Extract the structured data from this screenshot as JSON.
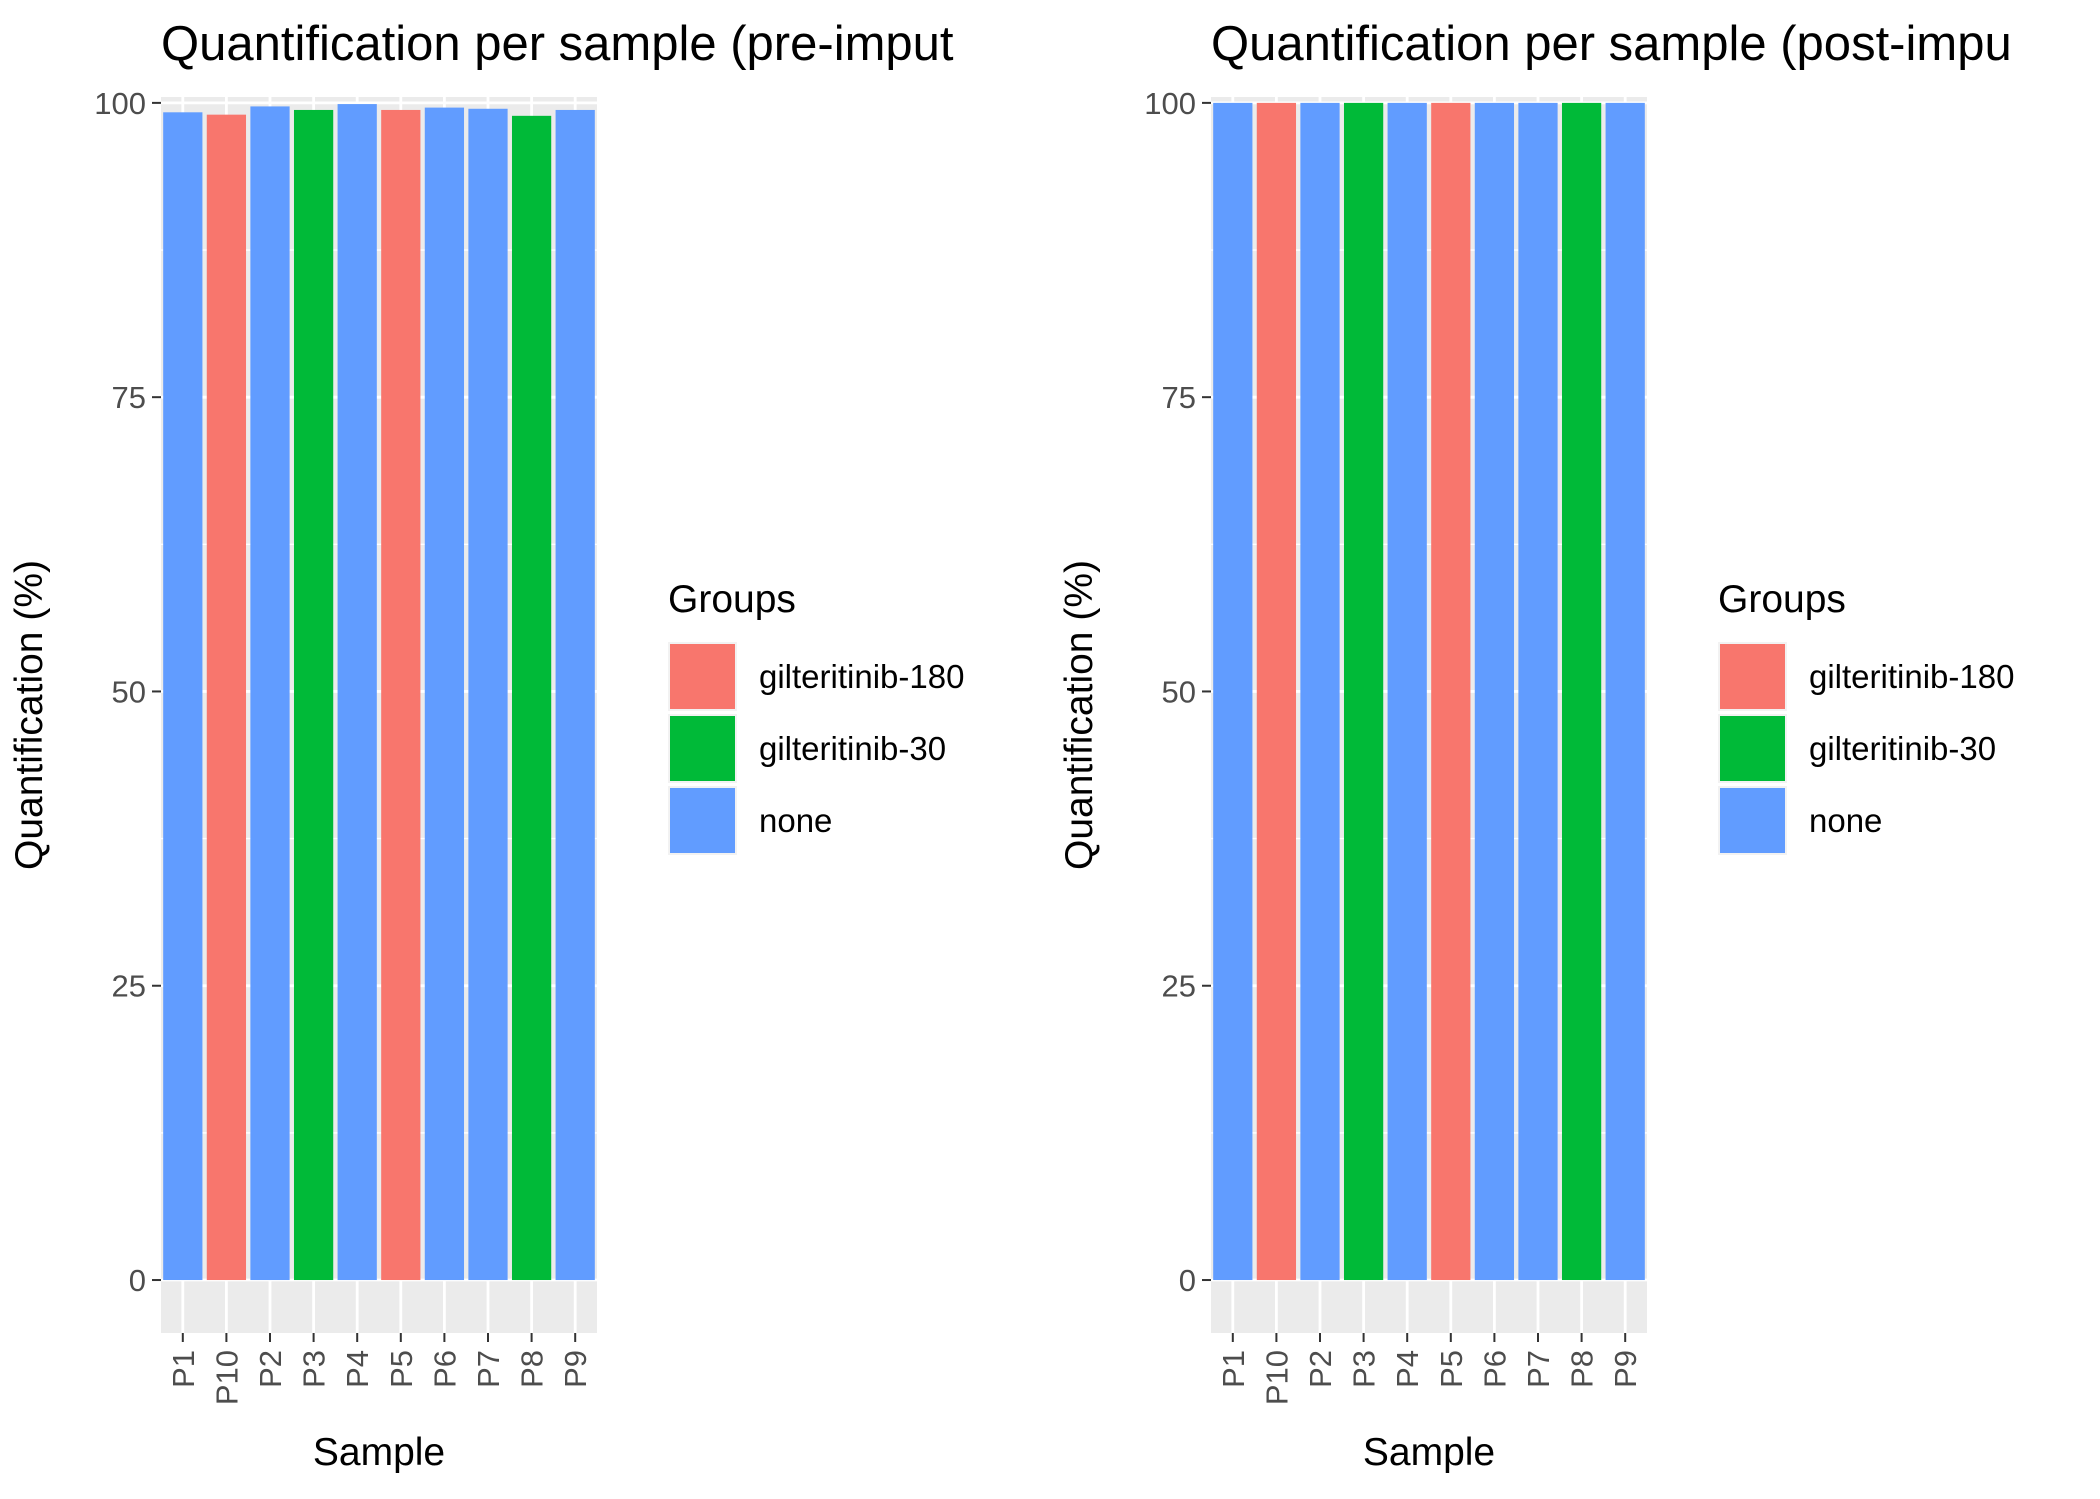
{
  "chart_data": [
    {
      "type": "bar",
      "title": "Quantification per sample (pre-imput",
      "xlabel": "Sample",
      "ylabel": "Quantification (%)",
      "ylim": [
        -4.5,
        100.5
      ],
      "yticks": [
        0,
        25,
        50,
        75,
        100
      ],
      "ytick_labels": [
        "0",
        "25",
        "50",
        "75",
        "100"
      ],
      "categories": [
        "P1",
        "P10",
        "P2",
        "P3",
        "P4",
        "P5",
        "P6",
        "P7",
        "P8",
        "P9"
      ],
      "values": [
        99.2,
        99.0,
        99.7,
        99.4,
        99.9,
        99.4,
        99.6,
        99.5,
        98.9,
        99.4
      ],
      "groups": [
        "none",
        "gilteritinib-180",
        "none",
        "gilteritinib-30",
        "none",
        "gilteritinib-180",
        "none",
        "none",
        "gilteritinib-30",
        "none"
      ],
      "grid": true,
      "legend": {
        "title": "Groups",
        "position": "right",
        "entries": [
          {
            "label": "gilteritinib-180",
            "color": "#F8766D"
          },
          {
            "label": "gilteritinib-30",
            "color": "#00BA38"
          },
          {
            "label": "none",
            "color": "#619CFF"
          }
        ]
      }
    },
    {
      "type": "bar",
      "title": "Quantification per sample (post-impu",
      "xlabel": "Sample",
      "ylabel": "Quantification (%)",
      "ylim": [
        -4.5,
        100.5
      ],
      "yticks": [
        0,
        25,
        50,
        75,
        100
      ],
      "ytick_labels": [
        "0",
        "25",
        "50",
        "75",
        "100"
      ],
      "categories": [
        "P1",
        "P10",
        "P2",
        "P3",
        "P4",
        "P5",
        "P6",
        "P7",
        "P8",
        "P9"
      ],
      "values": [
        100,
        100,
        100,
        100,
        100,
        100,
        100,
        100,
        100,
        100
      ],
      "groups": [
        "none",
        "gilteritinib-180",
        "none",
        "gilteritinib-30",
        "none",
        "gilteritinib-180",
        "none",
        "none",
        "gilteritinib-30",
        "none"
      ],
      "grid": true,
      "legend": {
        "title": "Groups",
        "position": "right",
        "entries": [
          {
            "label": "gilteritinib-180",
            "color": "#F8766D"
          },
          {
            "label": "gilteritinib-30",
            "color": "#00BA38"
          },
          {
            "label": "none",
            "color": "#619CFF"
          }
        ]
      }
    }
  ],
  "colors": {
    "panel_background": "#EBEBEB",
    "grid_line": "#FFFFFF",
    "axis_text": "#4D4D4D",
    "text": "#000000"
  }
}
